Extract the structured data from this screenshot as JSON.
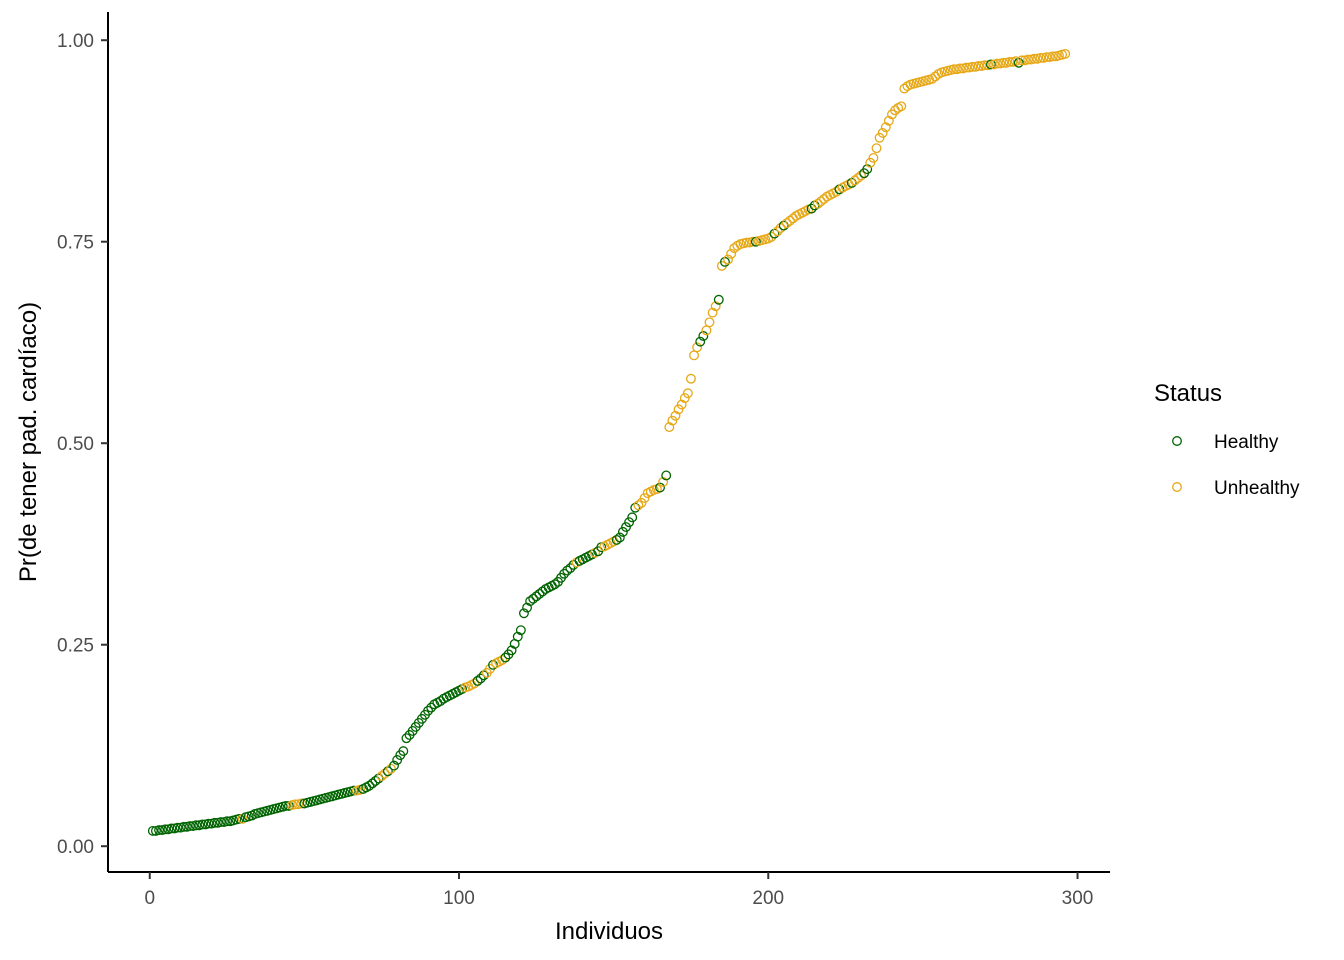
{
  "chart_data": {
    "type": "scatter",
    "xlabel": "Individuos",
    "ylabel": "Pr(de tener pad. cardíaco)",
    "xlim": [
      -13.5,
      310.5
    ],
    "ylim": [
      -0.032,
      1.035
    ],
    "x_ticks": [
      0,
      100,
      200,
      300
    ],
    "x_tick_labels": [
      "0",
      "100",
      "200",
      "300"
    ],
    "y_ticks": [
      0,
      0.25,
      0.5,
      0.75,
      1
    ],
    "y_tick_labels": [
      "0.00",
      "0.25",
      "0.50",
      "0.75",
      "1.00"
    ],
    "grid": false,
    "legend": {
      "title": "Status",
      "position": "right",
      "items": [
        {
          "label": "Healthy",
          "color": "#006400"
        },
        {
          "label": "Unhealthy",
          "color": "#E6A817"
        }
      ]
    },
    "marker": "open-circle",
    "series": [
      {
        "name": "Healthy",
        "color": "#006400",
        "points": [
          [
            1,
            0.019
          ],
          [
            2,
            0.019
          ],
          [
            3,
            0.02
          ],
          [
            4,
            0.02
          ],
          [
            5,
            0.021
          ],
          [
            6,
            0.021
          ],
          [
            7,
            0.022
          ],
          [
            8,
            0.022
          ],
          [
            9,
            0.023
          ],
          [
            10,
            0.023
          ],
          [
            11,
            0.024
          ],
          [
            12,
            0.024
          ],
          [
            13,
            0.025
          ],
          [
            14,
            0.025
          ],
          [
            15,
            0.026
          ],
          [
            16,
            0.026
          ],
          [
            17,
            0.027
          ],
          [
            18,
            0.027
          ],
          [
            19,
            0.028
          ],
          [
            20,
            0.028
          ],
          [
            21,
            0.029
          ],
          [
            22,
            0.029
          ],
          [
            23,
            0.03
          ],
          [
            24,
            0.03
          ],
          [
            25,
            0.031
          ],
          [
            26,
            0.031
          ],
          [
            27,
            0.032
          ],
          [
            28,
            0.033
          ],
          [
            29,
            0.034
          ],
          [
            31,
            0.036
          ],
          [
            32,
            0.037
          ],
          [
            33,
            0.038
          ],
          [
            34,
            0.04
          ],
          [
            35,
            0.041
          ],
          [
            36,
            0.042
          ],
          [
            37,
            0.043
          ],
          [
            38,
            0.044
          ],
          [
            39,
            0.045
          ],
          [
            40,
            0.046
          ],
          [
            41,
            0.047
          ],
          [
            42,
            0.048
          ],
          [
            43,
            0.049
          ],
          [
            44,
            0.05
          ],
          [
            45,
            0.05
          ],
          [
            50,
            0.053
          ],
          [
            51,
            0.054
          ],
          [
            52,
            0.055
          ],
          [
            53,
            0.056
          ],
          [
            54,
            0.057
          ],
          [
            55,
            0.058
          ],
          [
            56,
            0.059
          ],
          [
            57,
            0.06
          ],
          [
            58,
            0.061
          ],
          [
            59,
            0.062
          ],
          [
            60,
            0.063
          ],
          [
            61,
            0.064
          ],
          [
            62,
            0.065
          ],
          [
            63,
            0.066
          ],
          [
            64,
            0.067
          ],
          [
            65,
            0.068
          ],
          [
            66,
            0.069
          ],
          [
            69,
            0.071
          ],
          [
            70,
            0.073
          ],
          [
            71,
            0.075
          ],
          [
            72,
            0.078
          ],
          [
            73,
            0.081
          ],
          [
            74,
            0.084
          ],
          [
            77,
            0.093
          ],
          [
            79,
            0.1
          ],
          [
            80,
            0.107
          ],
          [
            81,
            0.113
          ],
          [
            82,
            0.118
          ],
          [
            83,
            0.134
          ],
          [
            84,
            0.138
          ],
          [
            85,
            0.143
          ],
          [
            86,
            0.148
          ],
          [
            87,
            0.153
          ],
          [
            88,
            0.158
          ],
          [
            89,
            0.163
          ],
          [
            90,
            0.168
          ],
          [
            91,
            0.172
          ],
          [
            92,
            0.176
          ],
          [
            93,
            0.178
          ],
          [
            94,
            0.18
          ],
          [
            95,
            0.183
          ],
          [
            96,
            0.185
          ],
          [
            97,
            0.187
          ],
          [
            98,
            0.189
          ],
          [
            99,
            0.191
          ],
          [
            100,
            0.193
          ],
          [
            101,
            0.195
          ],
          [
            106,
            0.205
          ],
          [
            107,
            0.208
          ],
          [
            108,
            0.212
          ],
          [
            111,
            0.225
          ],
          [
            115,
            0.234
          ],
          [
            116,
            0.238
          ],
          [
            117,
            0.243
          ],
          [
            118,
            0.251
          ],
          [
            119,
            0.26
          ],
          [
            120,
            0.268
          ],
          [
            121,
            0.289
          ],
          [
            122,
            0.296
          ],
          [
            123,
            0.304
          ],
          [
            124,
            0.307
          ],
          [
            125,
            0.31
          ],
          [
            126,
            0.313
          ],
          [
            127,
            0.316
          ],
          [
            128,
            0.319
          ],
          [
            129,
            0.321
          ],
          [
            130,
            0.323
          ],
          [
            131,
            0.325
          ],
          [
            132,
            0.328
          ],
          [
            133,
            0.333
          ],
          [
            134,
            0.338
          ],
          [
            135,
            0.342
          ],
          [
            136,
            0.345
          ],
          [
            137,
            0.349
          ],
          [
            139,
            0.354
          ],
          [
            140,
            0.356
          ],
          [
            141,
            0.358
          ],
          [
            142,
            0.36
          ],
          [
            143,
            0.362
          ],
          [
            145,
            0.366
          ],
          [
            146,
            0.371
          ],
          [
            151,
            0.38
          ],
          [
            152,
            0.383
          ],
          [
            153,
            0.39
          ],
          [
            154,
            0.396
          ],
          [
            155,
            0.402
          ],
          [
            156,
            0.408
          ],
          [
            157,
            0.42
          ],
          [
            165,
            0.445
          ],
          [
            167,
            0.46
          ],
          [
            178,
            0.626
          ],
          [
            179,
            0.633
          ],
          [
            184,
            0.678
          ],
          [
            186,
            0.725
          ],
          [
            196,
            0.75
          ],
          [
            202,
            0.76
          ],
          [
            205,
            0.77
          ],
          [
            214,
            0.791
          ],
          [
            215,
            0.795
          ],
          [
            223,
            0.815
          ],
          [
            227,
            0.823
          ],
          [
            231,
            0.835
          ],
          [
            232,
            0.84
          ],
          [
            272,
            0.97
          ],
          [
            281,
            0.972
          ]
        ]
      },
      {
        "name": "Unhealthy",
        "color": "#E6A817",
        "points": [
          [
            30,
            0.034
          ],
          [
            46,
            0.051
          ],
          [
            47,
            0.052
          ],
          [
            48,
            0.052
          ],
          [
            49,
            0.053
          ],
          [
            67,
            0.069
          ],
          [
            68,
            0.07
          ],
          [
            75,
            0.087
          ],
          [
            76,
            0.09
          ],
          [
            78,
            0.096
          ],
          [
            102,
            0.197
          ],
          [
            103,
            0.198
          ],
          [
            104,
            0.2
          ],
          [
            105,
            0.202
          ],
          [
            109,
            0.215
          ],
          [
            110,
            0.22
          ],
          [
            112,
            0.227
          ],
          [
            113,
            0.229
          ],
          [
            114,
            0.231
          ],
          [
            138,
            0.352
          ],
          [
            144,
            0.364
          ],
          [
            147,
            0.372
          ],
          [
            148,
            0.374
          ],
          [
            149,
            0.376
          ],
          [
            150,
            0.378
          ],
          [
            158,
            0.423
          ],
          [
            159,
            0.426
          ],
          [
            160,
            0.432
          ],
          [
            161,
            0.438
          ],
          [
            162,
            0.44
          ],
          [
            163,
            0.442
          ],
          [
            164,
            0.443
          ],
          [
            166,
            0.452
          ],
          [
            168,
            0.52
          ],
          [
            169,
            0.528
          ],
          [
            170,
            0.534
          ],
          [
            171,
            0.542
          ],
          [
            172,
            0.548
          ],
          [
            173,
            0.556
          ],
          [
            174,
            0.562
          ],
          [
            175,
            0.58
          ],
          [
            176,
            0.609
          ],
          [
            177,
            0.619
          ],
          [
            180,
            0.64
          ],
          [
            181,
            0.65
          ],
          [
            182,
            0.662
          ],
          [
            183,
            0.67
          ],
          [
            185,
            0.72
          ],
          [
            187,
            0.728
          ],
          [
            188,
            0.735
          ],
          [
            189,
            0.742
          ],
          [
            190,
            0.745
          ],
          [
            191,
            0.747
          ],
          [
            192,
            0.748
          ],
          [
            193,
            0.749
          ],
          [
            194,
            0.749
          ],
          [
            195,
            0.75
          ],
          [
            197,
            0.751
          ],
          [
            198,
            0.752
          ],
          [
            199,
            0.753
          ],
          [
            200,
            0.754
          ],
          [
            201,
            0.756
          ],
          [
            203,
            0.763
          ],
          [
            204,
            0.767
          ],
          [
            206,
            0.773
          ],
          [
            207,
            0.776
          ],
          [
            208,
            0.779
          ],
          [
            209,
            0.782
          ],
          [
            210,
            0.784
          ],
          [
            211,
            0.786
          ],
          [
            212,
            0.788
          ],
          [
            213,
            0.79
          ],
          [
            216,
            0.797
          ],
          [
            217,
            0.8
          ],
          [
            218,
            0.803
          ],
          [
            219,
            0.806
          ],
          [
            220,
            0.808
          ],
          [
            221,
            0.81
          ],
          [
            222,
            0.812
          ],
          [
            224,
            0.817
          ],
          [
            225,
            0.819
          ],
          [
            226,
            0.821
          ],
          [
            228,
            0.826
          ],
          [
            229,
            0.829
          ],
          [
            230,
            0.832
          ],
          [
            233,
            0.848
          ],
          [
            234,
            0.854
          ],
          [
            235,
            0.866
          ],
          [
            236,
            0.879
          ],
          [
            237,
            0.885
          ],
          [
            238,
            0.892
          ],
          [
            239,
            0.9
          ],
          [
            240,
            0.908
          ],
          [
            241,
            0.913
          ],
          [
            242,
            0.916
          ],
          [
            243,
            0.918
          ],
          [
            244,
            0.94
          ],
          [
            245,
            0.943
          ],
          [
            246,
            0.945
          ],
          [
            247,
            0.946
          ],
          [
            248,
            0.947
          ],
          [
            249,
            0.948
          ],
          [
            250,
            0.949
          ],
          [
            251,
            0.95
          ],
          [
            252,
            0.951
          ],
          [
            253,
            0.952
          ],
          [
            254,
            0.955
          ],
          [
            255,
            0.958
          ],
          [
            256,
            0.96
          ],
          [
            257,
            0.961
          ],
          [
            258,
            0.962
          ],
          [
            259,
            0.963
          ],
          [
            260,
            0.964
          ],
          [
            261,
            0.964
          ],
          [
            262,
            0.965
          ],
          [
            263,
            0.965
          ],
          [
            264,
            0.966
          ],
          [
            265,
            0.966
          ],
          [
            266,
            0.967
          ],
          [
            267,
            0.967
          ],
          [
            268,
            0.968
          ],
          [
            269,
            0.968
          ],
          [
            270,
            0.969
          ],
          [
            271,
            0.969
          ],
          [
            273,
            0.97
          ],
          [
            274,
            0.971
          ],
          [
            275,
            0.971
          ],
          [
            276,
            0.972
          ],
          [
            277,
            0.972
          ],
          [
            278,
            0.973
          ],
          [
            279,
            0.973
          ],
          [
            280,
            0.974
          ],
          [
            282,
            0.975
          ],
          [
            283,
            0.975
          ],
          [
            284,
            0.976
          ],
          [
            285,
            0.976
          ],
          [
            286,
            0.977
          ],
          [
            287,
            0.977
          ],
          [
            288,
            0.978
          ],
          [
            289,
            0.978
          ],
          [
            290,
            0.979
          ],
          [
            291,
            0.979
          ],
          [
            292,
            0.98
          ],
          [
            293,
            0.98
          ],
          [
            294,
            0.981
          ],
          [
            295,
            0.982
          ],
          [
            296,
            0.983
          ]
        ]
      }
    ]
  }
}
